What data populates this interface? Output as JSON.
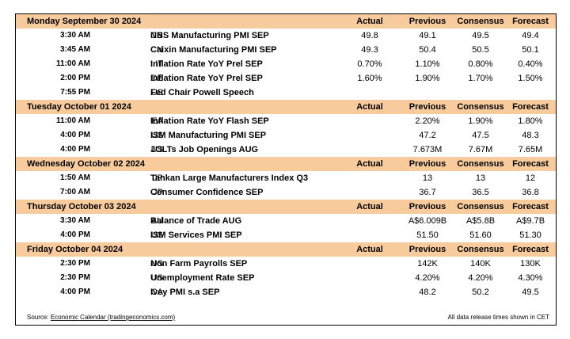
{
  "columns": {
    "actual": "Actual",
    "previous": "Previous",
    "consensus": "Consensus",
    "forecast": "Forecast"
  },
  "days": [
    {
      "date": "Monday September 30 2024",
      "events": [
        {
          "time": "3:30 AM",
          "country": "CN",
          "event": "NBS Manufacturing PMI SEP",
          "actual": "49.8",
          "previous": "49.1",
          "consensus": "49.5",
          "forecast": "49.4"
        },
        {
          "time": "3:45 AM",
          "country": "CN",
          "event": "Caixin Manufacturing PMI SEP",
          "actual": "49.3",
          "previous": "50.4",
          "consensus": "50.5",
          "forecast": "50.1"
        },
        {
          "time": "11:00 AM",
          "country": "IT",
          "event": "Inflation Rate YoY Prel SEP",
          "actual": "0.70%",
          "previous": "1.10%",
          "consensus": "0.80%",
          "forecast": "0.40%"
        },
        {
          "time": "2:00 PM",
          "country": "DE",
          "event": "Inflation Rate YoY Prel SEP",
          "actual": "1.60%",
          "previous": "1.90%",
          "consensus": "1.70%",
          "forecast": "1.50%"
        },
        {
          "time": "7:55 PM",
          "country": "US",
          "event": "Fed Chair Powell Speech",
          "actual": "",
          "previous": "",
          "consensus": "",
          "forecast": ""
        }
      ]
    },
    {
      "date": "Tuesday October 01 2024",
      "events": [
        {
          "time": "11:00 AM",
          "country": "EA",
          "event": "Inflation Rate YoY Flash SEP",
          "actual": "",
          "previous": "2.20%",
          "consensus": "1.90%",
          "forecast": "1.80%"
        },
        {
          "time": "4:00 PM",
          "country": "US",
          "event": "ISM Manufacturing PMI SEP",
          "actual": "",
          "previous": "47.2",
          "consensus": "47.5",
          "forecast": "48.3"
        },
        {
          "time": "4:00 PM",
          "country": "US",
          "event": "JOLTs Job Openings AUG",
          "actual": "",
          "previous": "7.673M",
          "consensus": "7.67M",
          "forecast": "7.65M"
        }
      ]
    },
    {
      "date": "Wednesday October 02 2024",
      "events": [
        {
          "time": "1:50 AM",
          "country": "JP",
          "event": "Tankan Large Manufacturers Index Q3",
          "actual": "",
          "previous": "13",
          "consensus": "13",
          "forecast": "12"
        },
        {
          "time": "7:00 AM",
          "country": "JP",
          "event": "Consumer Confidence SEP",
          "actual": "",
          "previous": "36.7",
          "consensus": "36.5",
          "forecast": "36.8"
        }
      ]
    },
    {
      "date": "Thursday October 03 2024",
      "events": [
        {
          "time": "3:30 AM",
          "country": "AU",
          "event": "Balance of Trade AUG",
          "actual": "",
          "previous": "A$6.009B",
          "consensus": "A$5.8B",
          "forecast": "A$9.7B"
        },
        {
          "time": "4:00 PM",
          "country": "US",
          "event": "ISM Services PMI SEP",
          "actual": "",
          "previous": "51.50",
          "consensus": "51.60",
          "forecast": "51.30"
        }
      ]
    },
    {
      "date": "Friday October 04 2024",
      "events": [
        {
          "time": "2:30 PM",
          "country": "US",
          "event": "Non Farm Payrolls SEP",
          "actual": "",
          "previous": "142K",
          "consensus": "140K",
          "forecast": "130K"
        },
        {
          "time": "2:30 PM",
          "country": "US",
          "event": "Unemployment Rate SEP",
          "actual": "",
          "previous": "4.20%",
          "consensus": "4.20%",
          "forecast": "4.30%"
        },
        {
          "time": "4:00 PM",
          "country": "CA",
          "event": "Ivey PMI s.a SEP",
          "actual": "",
          "previous": "48.2",
          "consensus": "50.2",
          "forecast": "49.5"
        }
      ]
    }
  ],
  "footer": {
    "source_label": "Source:",
    "source_link": "Economic Calendar (tradingeconomics.com)",
    "note": "All data release times shown in CET"
  },
  "colors": {
    "header_band": "#f8cb9c"
  }
}
